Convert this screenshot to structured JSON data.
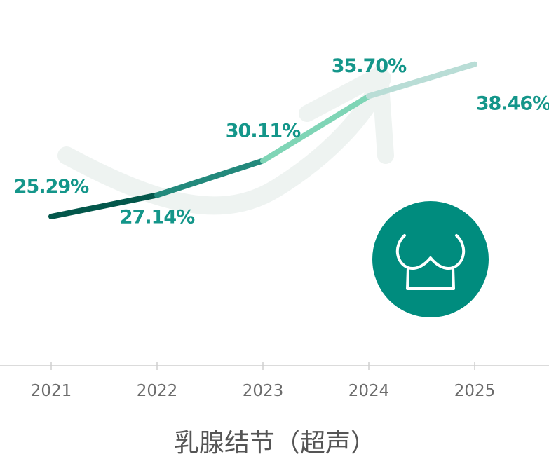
{
  "chart_data": {
    "type": "line",
    "title": "",
    "xlabel": "乳腺结节（超声）",
    "ylabel": "",
    "x": [
      "2021",
      "2022",
      "2023",
      "2024",
      "2025"
    ],
    "series": [
      {
        "values": [
          25.29,
          27.14,
          30.11,
          35.7,
          38.46
        ],
        "labels": [
          "25.29%",
          "27.14%",
          "30.11%",
          "35.70%",
          "38.46%"
        ]
      }
    ],
    "segment_colors": [
      "#03574B",
      "#23897C",
      "#7FD5B6",
      "#B9DDD6"
    ],
    "label_color": "#14968A",
    "axis_color": "#CFCFCF",
    "tick_color": "#6B6B6B",
    "decoration_color": "#EEF3F1",
    "icon_color": "#008C7E",
    "icon": "breast-icon",
    "grid": false,
    "legend": "none"
  }
}
